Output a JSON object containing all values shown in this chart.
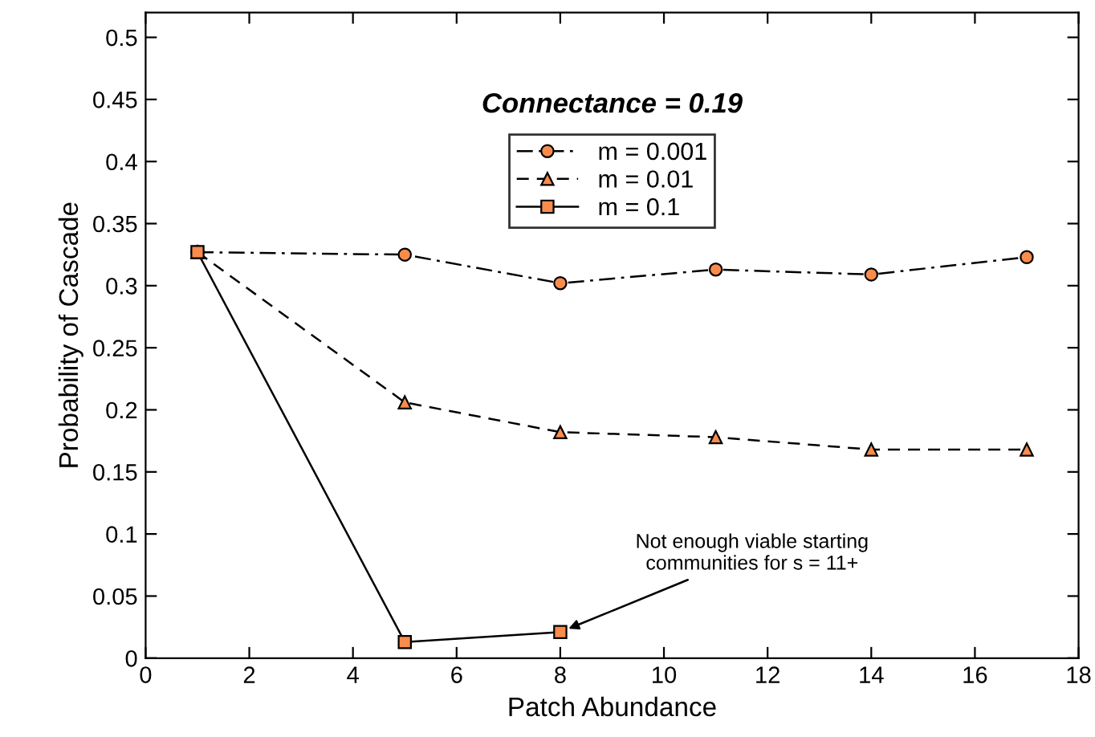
{
  "chart_data": {
    "type": "line",
    "title": "Connectance = 0.19",
    "xlabel": "Patch Abundance",
    "ylabel": "Probability of Cascade",
    "xlim": [
      0,
      18
    ],
    "xticks": [
      0,
      2,
      4,
      6,
      8,
      10,
      12,
      14,
      16,
      18
    ],
    "ylim": [
      0,
      0.52
    ],
    "yticks": [
      0,
      0.05,
      0.1,
      0.15,
      0.2,
      0.25,
      0.3,
      0.35,
      0.4,
      0.45,
      0.5
    ],
    "grid": false,
    "legend": "top",
    "series": [
      {
        "name": "m = 0.001",
        "color": "#f98c4c",
        "marker": "circle",
        "line_style": "dashdot",
        "x": [
          1,
          5,
          8,
          11,
          14,
          17
        ],
        "values": [
          0.327,
          0.325,
          0.302,
          0.313,
          0.309,
          0.323
        ]
      },
      {
        "name": "m = 0.01",
        "color": "#f98c4c",
        "marker": "triangle",
        "line_style": "dashed",
        "x": [
          1,
          5,
          8,
          11,
          14,
          17
        ],
        "values": [
          0.327,
          0.206,
          0.182,
          0.178,
          0.168,
          0.168
        ]
      },
      {
        "name": "m = 0.1",
        "color": "#f98c4c",
        "marker": "square",
        "line_style": "solid",
        "x": [
          1,
          5,
          8
        ],
        "values": [
          0.327,
          0.013,
          0.021
        ]
      }
    ],
    "annotations": [
      {
        "text": "Not enough viable starting\ncommunities for s = 11+",
        "x": 8,
        "y": 0.021
      }
    ]
  }
}
